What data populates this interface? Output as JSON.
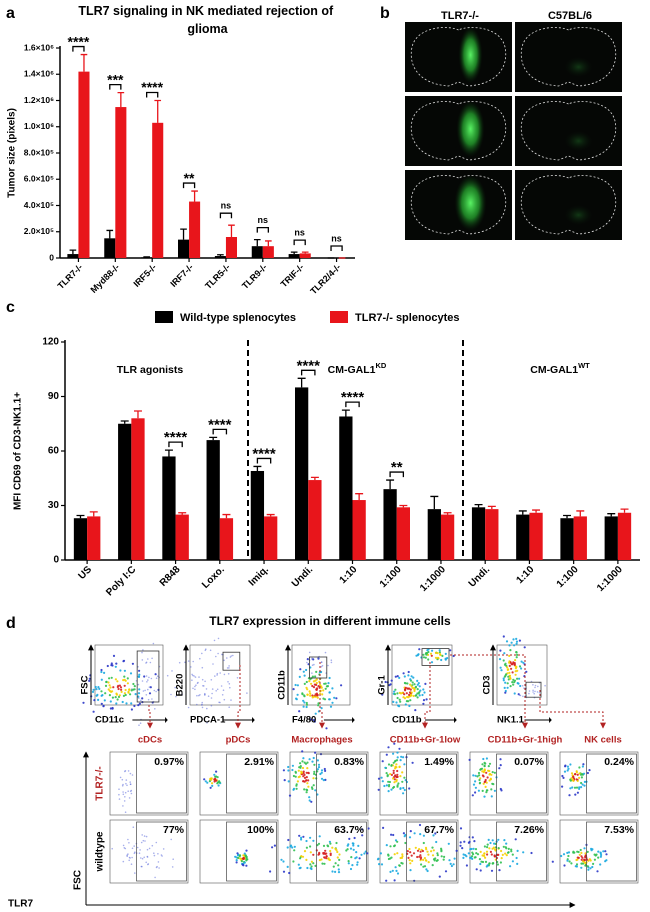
{
  "chart_data": [
    {
      "type": "bar",
      "title": "TLR7 signaling in NK mediated rejection of glioma",
      "y_label": "Tumor size (pixels)",
      "categories": [
        "TLR7-/-",
        "Myd88-/-",
        "IRF5-/-",
        "IRF7-/-",
        "TLR5-/-",
        "TLR9-/-",
        "TRIF-/-",
        "TLR2/4-/-"
      ],
      "series": [
        {
          "color": "#000000",
          "values": [
            30000,
            150000,
            5000,
            140000,
            15000,
            90000,
            30000,
            0
          ],
          "errors": [
            30000,
            60000,
            3000,
            80000,
            10000,
            50000,
            15000,
            0
          ]
        },
        {
          "color": "#e8151b",
          "values": [
            1420000,
            1150000,
            1030000,
            430000,
            160000,
            90000,
            35000,
            0
          ],
          "errors": [
            130000,
            110000,
            170000,
            80000,
            90000,
            40000,
            10000,
            0
          ]
        }
      ],
      "significance": [
        "****",
        "***",
        "****",
        "**",
        "ns",
        "ns",
        "ns",
        "ns"
      ],
      "ylim": [
        0,
        1600000
      ],
      "yticks": [
        0,
        {
          "value": 200000,
          "label": "2.0×10⁵"
        },
        {
          "value": 400000,
          "label": "4.0×10⁵"
        },
        {
          "value": 600000,
          "label": "6.0×10⁵"
        },
        {
          "value": 800000,
          "label": "8.0×10⁵"
        },
        {
          "value": 1000000,
          "label": "1.0×10⁶"
        },
        {
          "value": 1200000,
          "label": "1.2×10⁶"
        },
        {
          "value": 1400000,
          "label": "1.4×10⁶"
        },
        {
          "value": 1600000,
          "label": "1.6×10⁶"
        }
      ],
      "grid": false,
      "legend": false
    },
    {
      "type": "bar",
      "y_label": "MFI CD69 of CD3-NK1.1+",
      "categories": [
        "US",
        "Poly I:C",
        "R848",
        "Loxo.",
        "Imiq.",
        "Undi.",
        "1:10",
        "1:100",
        "1:1000",
        "Undi.",
        "1:10",
        "1:100",
        "1:1000"
      ],
      "series": [
        {
          "name": "Wild-type splenocytes",
          "color": "#000000",
          "values": [
            23,
            75,
            57,
            66,
            49,
            95,
            79,
            39,
            28,
            29,
            25,
            23,
            24
          ],
          "errors": [
            1.5,
            1.5,
            3.5,
            1.5,
            2.5,
            5,
            3.5,
            5,
            7,
            1.5,
            2,
            1.5,
            1.5
          ]
        },
        {
          "name": "TLR7-/- splenocytes",
          "color": "#e8151b",
          "values": [
            24,
            78,
            25,
            23,
            24,
            44,
            33,
            29,
            25,
            28,
            26,
            24,
            26
          ],
          "errors": [
            2.5,
            4,
            1,
            2,
            1,
            1.5,
            3.5,
            1,
            1,
            1.5,
            1.5,
            3,
            2
          ]
        }
      ],
      "significance": [
        null,
        null,
        "****",
        "****",
        "****",
        "****",
        "****",
        "**",
        null,
        null,
        null,
        null,
        null
      ],
      "groups": [
        {
          "base": "TLR agonists"
        },
        {
          "base": "CM-GAL1",
          "sup": "KD"
        },
        {
          "base": "CM-GAL1",
          "sup": "WT"
        }
      ],
      "ylim": [
        0,
        120
      ],
      "yticks": [
        0,
        30,
        60,
        90,
        120
      ],
      "grid": false,
      "legend": true
    }
  ],
  "panel_labels": [
    "a",
    "b",
    "c",
    "d"
  ],
  "panel_b": {
    "columns": [
      "TLR7-/-",
      "C57BL/6"
    ]
  },
  "panel_d": {
    "title": "TLR7 expression in different immune cells",
    "gates": [
      {
        "y": "FSC",
        "x": "CD11c"
      },
      {
        "y": "B220",
        "x": "PDCA-1"
      },
      {
        "y": "CD11b",
        "x": "F4/80"
      },
      {
        "y": "Gr-1",
        "x": "CD11b"
      },
      {
        "y": "CD3",
        "x": "NK1.1"
      }
    ],
    "populations": [
      "cDCs",
      "pDCs",
      "Macrophages",
      "CD11b+Gr-1low",
      "CD11b+Gr-1high",
      "NK cells"
    ],
    "rows": [
      "TLR7-/-",
      "wildtype"
    ],
    "percentages": [
      [
        "0.97%",
        "2.91%",
        "0.83%",
        "1.49%",
        "0.07%",
        "0.24%"
      ],
      [
        "77%",
        "100%",
        "63.7%",
        "67.7%",
        "7.26%",
        "7.53%"
      ]
    ],
    "y_axis": "FSC",
    "x_axis": "TLR7"
  }
}
